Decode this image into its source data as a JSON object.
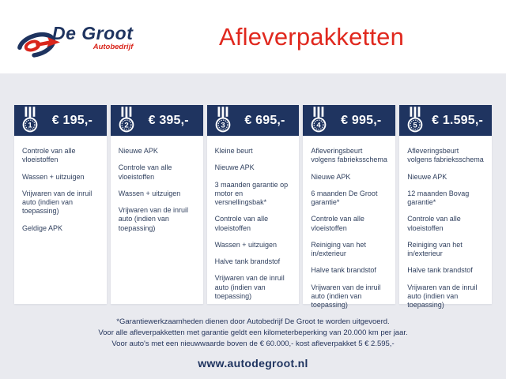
{
  "brand": {
    "name": "De Groot",
    "subtitle": "Autobedrijf"
  },
  "page_title": "Afleverpakketten",
  "packages": [
    {
      "number": "1",
      "price": "€ 195,-",
      "items": [
        "Controle van alle vloeistoffen",
        "Wassen + uitzuigen",
        "Vrijwaren van de inruil auto (indien van toepassing)",
        "Geldige APK"
      ]
    },
    {
      "number": "2",
      "price": "€ 395,-",
      "items": [
        "Nieuwe APK",
        "Controle van alle vloeistoffen",
        "Wassen + uitzuigen",
        "Vrijwaren van de inruil auto (indien van toepassing)"
      ]
    },
    {
      "number": "3",
      "price": "€ 695,-",
      "items": [
        "Kleine beurt",
        "Nieuwe APK",
        "3 maanden garantie op motor en versnellingsbak*",
        "Controle van alle vloeistoffen",
        "Wassen + uitzuigen",
        "Halve tank brandstof",
        "Vrijwaren van de inruil auto (indien van toepassing)"
      ]
    },
    {
      "number": "4",
      "price": "€ 995,-",
      "items": [
        "Afleveringsbeurt volgens fabrieksschema",
        "Nieuwe APK",
        "6 maanden De Groot garantie*",
        "Controle van alle vloeistoffen",
        "Reiniging van het in/exterieur",
        "Halve tank brandstof",
        "Vrijwaren van de inruil auto (indien van toepassing)"
      ]
    },
    {
      "number": "5",
      "price": "€ 1.595,-",
      "items": [
        "Afleveringsbeurt volgens fabrieksschema",
        "Nieuwe APK",
        "12 maanden Bovag garantie*",
        "Controle van alle vloeistoffen",
        "Reiniging van het in/exterieur",
        "Halve tank brandstof",
        "Vrijwaren van de inruil auto (indien van toepassing)"
      ]
    }
  ],
  "footnotes": [
    "*Garantiewerkzaamheden dienen door Autobedrijf De Groot te worden uitgevoerd.",
    "Voor alle afleverpakketten met garantie geldt een kilometerbeperking van 20.000 km per jaar.",
    "Voor auto's met een nieuwwaarde boven de € 60.000,- kost afleverpakket 5 € 2.595,-"
  ],
  "website": "www.autodegroot.nl",
  "colors": {
    "navy": "#1f3460",
    "red": "#e0281e",
    "background": "#e9eaef",
    "card_background": "#ffffff",
    "body_text": "#31415f"
  }
}
